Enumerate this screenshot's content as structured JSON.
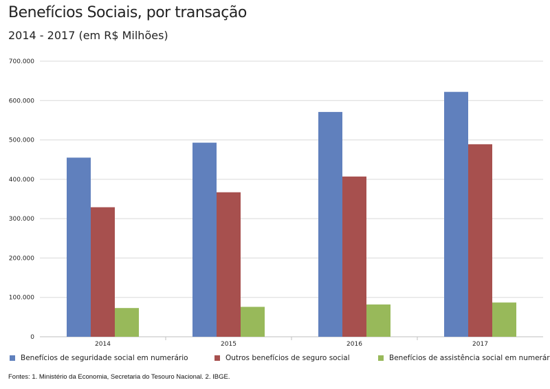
{
  "chart_data": {
    "type": "bar",
    "title": "Benefícios Sociais, por transação",
    "subtitle": "2014 - 2017 (em R$ Milhões)",
    "categories": [
      "2014",
      "2015",
      "2016",
      "2017"
    ],
    "series": [
      {
        "name": "Benefícios de seguridade social em numerário",
        "color": "#6080bd",
        "values": [
          455000,
          493000,
          571000,
          622000
        ]
      },
      {
        "name": "Outros benefícios de seguro social",
        "color": "#a7504e",
        "values": [
          329000,
          367000,
          407000,
          489000
        ]
      },
      {
        "name": "Benefícios de assistência social em numerário",
        "color": "#98b95a",
        "values": [
          73000,
          76000,
          82000,
          87000
        ]
      }
    ],
    "ylim": [
      0,
      700000
    ],
    "yticks": [
      "0",
      "100.000",
      "200.000",
      "300.000",
      "400.000",
      "500.000",
      "600.000",
      "700.000"
    ],
    "grid": true,
    "legend_position": "bottom"
  },
  "source": "Fontes: 1. Ministério da Economia, Secretaria do Tesouro Nacional. 2. IBGE."
}
